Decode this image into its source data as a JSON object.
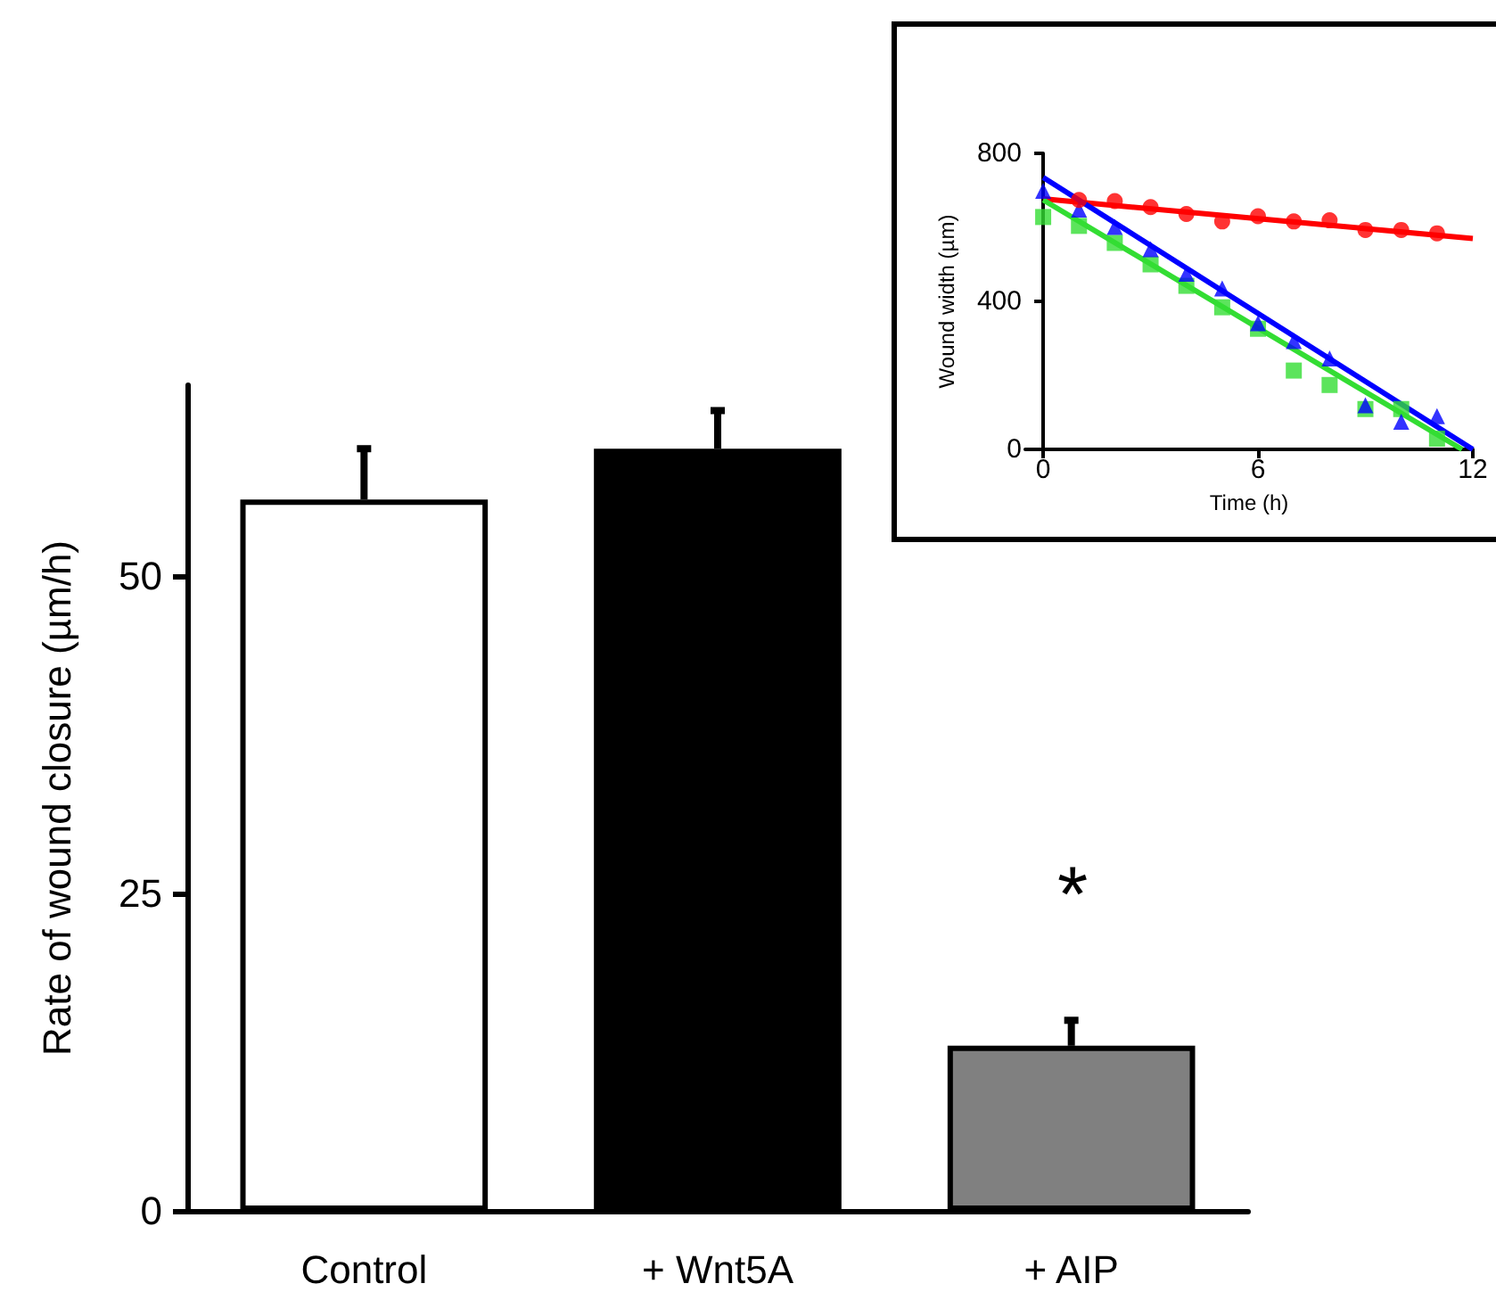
{
  "chart_data": [
    {
      "type": "bar",
      "ylabel": "Rate of wound closure (µm/h)",
      "categories": [
        "Control",
        "+ Wnt5A",
        "+ AIP"
      ],
      "values": [
        56,
        60,
        13
      ],
      "colors": [
        "#ffffff",
        "#000000",
        "#808080"
      ],
      "errors": [
        [
          56,
          60
        ],
        [
          60,
          63
        ],
        [
          13,
          15
        ]
      ],
      "ylim": [
        0,
        65
      ],
      "yticks": [
        0,
        25,
        50
      ],
      "annotations": [
        "*"
      ]
    },
    {
      "type": "scatter",
      "xlabel": "Time (h)",
      "ylabel": "Wound width (µm)",
      "xlim": [
        -0.5,
        12
      ],
      "xticks": [
        0,
        6,
        12
      ],
      "ylim": [
        0,
        800
      ],
      "yticks": [
        0,
        400,
        800
      ],
      "series": [
        {
          "color": "#ff0000",
          "marker": "circle",
          "x": [
            1,
            2,
            3,
            4,
            5,
            6,
            7,
            8,
            9,
            10,
            11
          ],
          "values": [
            674,
            671,
            655,
            636,
            616,
            630,
            616,
            619,
            593,
            593,
            584
          ]
        },
        {
          "color": "#0000ff",
          "marker": "triangle",
          "x": [
            0,
            1,
            2,
            3,
            4,
            5,
            6,
            7,
            8,
            9,
            10,
            11
          ],
          "values": [
            699,
            648,
            601,
            541,
            475,
            435,
            341,
            293,
            246,
            119,
            75,
            90
          ]
        },
        {
          "color": "#33dd33",
          "marker": "square",
          "x": [
            0,
            1,
            2,
            3,
            4,
            5,
            6,
            7,
            8,
            9,
            10,
            11
          ],
          "values": [
            628,
            604,
            558,
            500,
            442,
            384,
            326,
            213,
            174,
            109,
            109,
            29
          ]
        },
        {
          "type": "line",
          "color": "#ff0000",
          "x": [
            0,
            12
          ],
          "values": [
            677,
            570
          ]
        },
        {
          "type": "line",
          "color": "#0000ff",
          "x": [
            0,
            12
          ],
          "values": [
            735,
            0
          ]
        },
        {
          "type": "line",
          "color": "#33dd33",
          "x": [
            0,
            11.7
          ],
          "values": [
            674,
            0
          ]
        }
      ]
    }
  ]
}
